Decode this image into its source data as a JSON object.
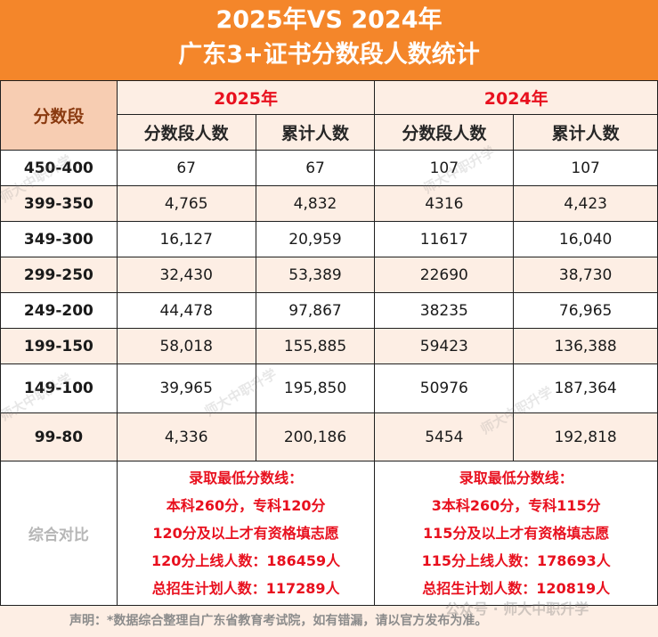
{
  "header": {
    "title_line1": "2025年VS 2024年",
    "title_line2": "广东3+证书分数段人数统计"
  },
  "table": {
    "col_score": "分数段",
    "year_2025": "2025年",
    "year_2024": "2024年",
    "sub_count": "分数段人数",
    "sub_cumulative": "累计人数",
    "rows": [
      {
        "score": "450-400",
        "c25": "67",
        "cum25": "67",
        "c24": "107",
        "cum24": "107"
      },
      {
        "score": "399-350",
        "c25": "4,765",
        "cum25": "4,832",
        "c24": "4316",
        "cum24": "4,423"
      },
      {
        "score": "349-300",
        "c25": "16,127",
        "cum25": "20,959",
        "c24": "11617",
        "cum24": "16,040"
      },
      {
        "score": "299-250",
        "c25": "32,430",
        "cum25": "53,389",
        "c24": "22690",
        "cum24": "38,730"
      },
      {
        "score": "249-200",
        "c25": "44,478",
        "cum25": "97,867",
        "c24": "38235",
        "cum24": "76,965"
      },
      {
        "score": "199-150",
        "c25": "58,018",
        "cum25": "155,885",
        "c24": "59423",
        "cum24": "136,388"
      },
      {
        "score": "149-100",
        "c25": "39,965",
        "cum25": "195,850",
        "c24": "50976",
        "cum24": "187,364"
      },
      {
        "score": "99-80",
        "c25": "4,336",
        "cum25": "200,186",
        "c24": "5454",
        "cum24": "192,818"
      }
    ],
    "compare_label": "综合对比",
    "notes_2025": [
      "录取最低分数线：",
      "本科260分，专科120分",
      "120分及以上才有资格填志愿",
      "120分上线人数：186459人",
      "总招生计划人数：117289人"
    ],
    "notes_2024": [
      "录取最低分数线：",
      "3本科260分，专科115分",
      "115分及以上才有资格填志愿",
      "115分上线人数：178693人",
      "总招生计划人数：120819人"
    ]
  },
  "footer": {
    "text": "声明：*数据综合整理自广东省教育考试院，如有错漏，请以官方发布为准。"
  },
  "watermark": {
    "text": "师大中职升学",
    "full": "公众号 · 师大中职升学"
  },
  "colors": {
    "header_bg": "#f4862a",
    "accent_red": "#e8101e",
    "row_shade": "#fdeee4",
    "score_header_bg": "#f7cdb2"
  }
}
